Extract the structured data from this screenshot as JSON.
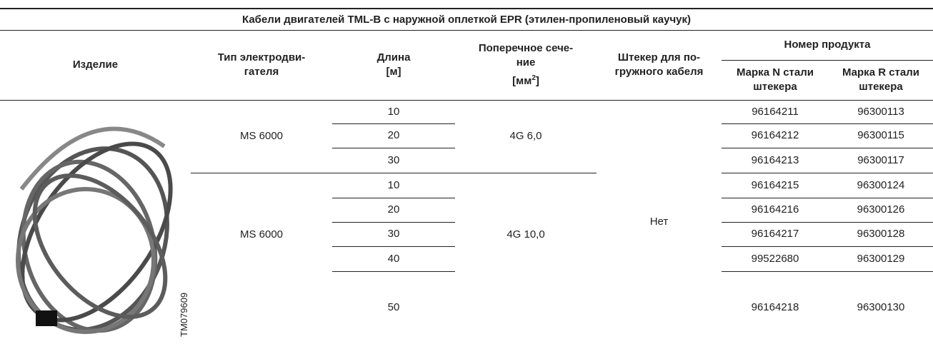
{
  "table": {
    "title": "Кабели двигателей TML-B с наружной оплеткой EPR (этилен-пропиленовый каучук)",
    "header": {
      "product": "Изделие",
      "motor_type": "Тип электродви-\nгателя",
      "length": "Длина\n[м]",
      "cross_section": "Поперечное сече-\nние",
      "cross_section_unit_prefix": "[мм",
      "cross_section_unit_exp": "2",
      "cross_section_unit_suffix": "]",
      "plug": "Штекер для по-\nгружного кабеля",
      "product_number": "Номер продукта",
      "steel_n": "Марка N стали\nштекера",
      "steel_r": "Марка R стали\nштекера"
    },
    "image_code": "TM079609",
    "plug_value": "Нет",
    "groups": [
      {
        "motor": "MS 6000",
        "section": "4G 6,0",
        "rows": [
          {
            "length": 10,
            "n": "96164211",
            "r": "96300113"
          },
          {
            "length": 20,
            "n": "96164212",
            "r": "96300115"
          },
          {
            "length": 30,
            "n": "96164213",
            "r": "96300117"
          }
        ]
      },
      {
        "motor": "MS 6000",
        "section": "4G 10,0",
        "rows": [
          {
            "length": 10,
            "n": "96164215",
            "r": "96300124"
          },
          {
            "length": 20,
            "n": "96164216",
            "r": "96300126"
          },
          {
            "length": 30,
            "n": "96164217",
            "r": "96300128"
          },
          {
            "length": 40,
            "n": "99522680",
            "r": "96300129"
          },
          {
            "length": 50,
            "n": "96164218",
            "r": "96300130"
          }
        ]
      }
    ]
  }
}
